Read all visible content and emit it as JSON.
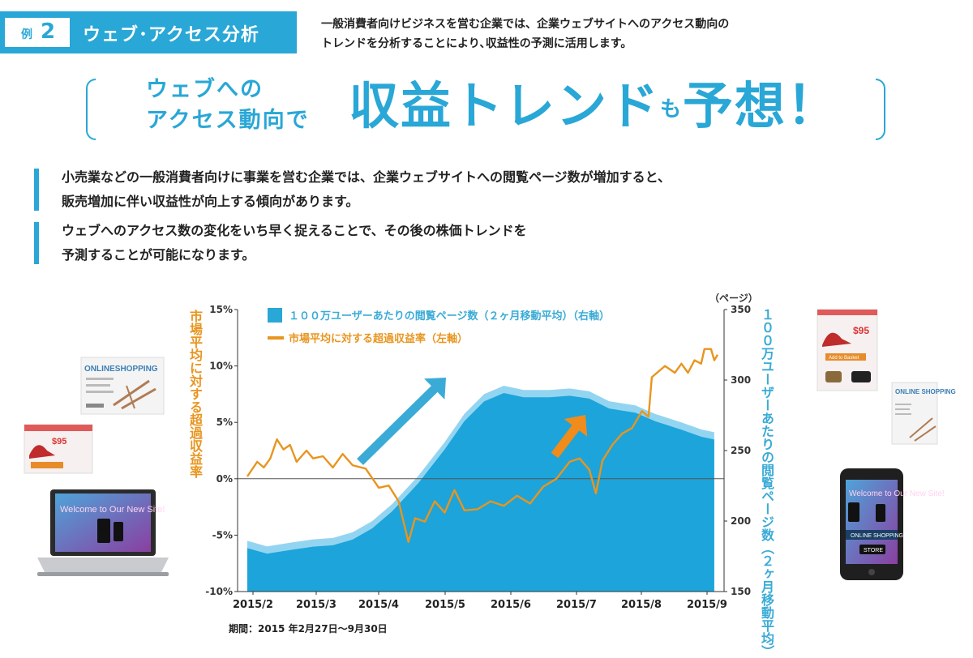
{
  "header": {
    "example_label": "例",
    "example_number": "2",
    "category": "ウェブ･アクセス分析",
    "description_lines": [
      "一般消費者向けビジネスを営む企業では、企業ウェブサイトへのアクセス動向の",
      "トレンドを分析することにより､収益性の予測に活用します。"
    ]
  },
  "headline": {
    "lead_lines": [
      "ウェブへの",
      "アクセス動向で"
    ],
    "main": "収益トレンド",
    "particle": "も",
    "main2": "予想",
    "exclamation": "！"
  },
  "points": [
    {
      "lines": [
        "小売業などの一般消費者向けに事業を営む企業では、企業ウェブサイトへの閲覧ページ数が増加すると、",
        "販売増加に伴い収益性が向上する傾向があります。"
      ]
    },
    {
      "lines": [
        "ウェブへのアクセス数の変化をいち早く捉えることで、その後の株価トレンドを",
        "予測することが可能になります。"
      ]
    }
  ],
  "illustrations": {
    "laptop_screen_text": "Welcome to Our New Site!",
    "phone_screen_text": "Welcome to Our New Site!",
    "phone_banner": "ONLINE SHOPPING",
    "phone_store": "STORE",
    "card_left_title": "ONLINESHOPPING",
    "card_right_title": "ONLINE SHOPPING",
    "price_tag": "$95",
    "add_to_basket": "Add to Basket"
  },
  "chart_data": {
    "type": "area",
    "left_axis_label": "市場平均に対する超過収益率",
    "right_axis_label": "１００万ユーザーあたりの閲覧ページ数（２ヶ月移動平均）",
    "right_axis_unit": "（ページ）",
    "legend": [
      {
        "name": "１００万ユーザーあたりの閲覧ページ数（２ヶ月移動平均）（右軸）",
        "kind": "area"
      },
      {
        "name": "市場平均に対する超過収益率（左軸）",
        "kind": "line"
      }
    ],
    "y_left_ticks": [
      "15%",
      "10%",
      "5%",
      "0%",
      "-5%",
      "-10%"
    ],
    "y_left_range": [
      -10,
      15
    ],
    "y_right_ticks": [
      "350",
      "300",
      "250",
      "200",
      "150"
    ],
    "y_right_range": [
      150,
      350
    ],
    "x_ticks": [
      "2015/2",
      "2015/3",
      "2015/4",
      "2015/5",
      "2015/6",
      "2015/7",
      "2015/8",
      "2015/9"
    ],
    "x_range": [
      0,
      7
    ],
    "period_note": "期間：2015 年2月27日～9月30日",
    "colors": {
      "area_dark": "#1aa3d9",
      "area_light": "#8fd2ef",
      "line": "#e8951f",
      "arrow": "#3aabd6",
      "axis_text": "#e8951f",
      "right_text": "#3aabd6"
    },
    "page_views": [
      {
        "x": 0.0,
        "y": 186
      },
      {
        "x": 0.3,
        "y": 182
      },
      {
        "x": 0.7,
        "y": 185
      },
      {
        "x": 1.0,
        "y": 187
      },
      {
        "x": 1.3,
        "y": 188
      },
      {
        "x": 1.6,
        "y": 192
      },
      {
        "x": 1.9,
        "y": 200
      },
      {
        "x": 2.2,
        "y": 212
      },
      {
        "x": 2.6,
        "y": 232
      },
      {
        "x": 3.0,
        "y": 256
      },
      {
        "x": 3.3,
        "y": 276
      },
      {
        "x": 3.6,
        "y": 290
      },
      {
        "x": 3.9,
        "y": 296
      },
      {
        "x": 4.2,
        "y": 293
      },
      {
        "x": 4.6,
        "y": 293
      },
      {
        "x": 4.9,
        "y": 294
      },
      {
        "x": 5.2,
        "y": 292
      },
      {
        "x": 5.5,
        "y": 285
      },
      {
        "x": 5.9,
        "y": 282
      },
      {
        "x": 6.2,
        "y": 276
      },
      {
        "x": 6.6,
        "y": 270
      },
      {
        "x": 6.9,
        "y": 265
      },
      {
        "x": 7.1,
        "y": 263
      }
    ],
    "excess_return": [
      {
        "x": 0.0,
        "y": 0.2
      },
      {
        "x": 0.15,
        "y": 1.5
      },
      {
        "x": 0.25,
        "y": 1.0
      },
      {
        "x": 0.35,
        "y": 1.8
      },
      {
        "x": 0.45,
        "y": 3.5
      },
      {
        "x": 0.55,
        "y": 2.6
      },
      {
        "x": 0.65,
        "y": 3.0
      },
      {
        "x": 0.75,
        "y": 1.5
      },
      {
        "x": 0.9,
        "y": 2.5
      },
      {
        "x": 1.0,
        "y": 1.8
      },
      {
        "x": 1.15,
        "y": 2.0
      },
      {
        "x": 1.3,
        "y": 1.0
      },
      {
        "x": 1.45,
        "y": 2.2
      },
      {
        "x": 1.6,
        "y": 1.2
      },
      {
        "x": 1.8,
        "y": 0.9
      },
      {
        "x": 2.0,
        "y": -0.8
      },
      {
        "x": 2.15,
        "y": -0.6
      },
      {
        "x": 2.3,
        "y": -2.0
      },
      {
        "x": 2.45,
        "y": -5.6
      },
      {
        "x": 2.55,
        "y": -3.5
      },
      {
        "x": 2.7,
        "y": -3.8
      },
      {
        "x": 2.85,
        "y": -2.0
      },
      {
        "x": 3.0,
        "y": -3.0
      },
      {
        "x": 3.15,
        "y": -1.0
      },
      {
        "x": 3.3,
        "y": -2.8
      },
      {
        "x": 3.5,
        "y": -2.7
      },
      {
        "x": 3.7,
        "y": -2.0
      },
      {
        "x": 3.9,
        "y": -2.4
      },
      {
        "x": 4.1,
        "y": -1.5
      },
      {
        "x": 4.3,
        "y": -2.2
      },
      {
        "x": 4.5,
        "y": -0.7
      },
      {
        "x": 4.7,
        "y": 0.0
      },
      {
        "x": 4.9,
        "y": 1.5
      },
      {
        "x": 5.05,
        "y": 1.8
      },
      {
        "x": 5.2,
        "y": 0.8
      },
      {
        "x": 5.3,
        "y": -1.3
      },
      {
        "x": 5.4,
        "y": 1.6
      },
      {
        "x": 5.55,
        "y": 3.0
      },
      {
        "x": 5.7,
        "y": 4.0
      },
      {
        "x": 5.85,
        "y": 4.5
      },
      {
        "x": 6.0,
        "y": 6.0
      },
      {
        "x": 6.1,
        "y": 5.5
      },
      {
        "x": 6.15,
        "y": 9.0
      },
      {
        "x": 6.25,
        "y": 9.5
      },
      {
        "x": 6.35,
        "y": 10.0
      },
      {
        "x": 6.5,
        "y": 9.4
      },
      {
        "x": 6.6,
        "y": 10.2
      },
      {
        "x": 6.7,
        "y": 9.4
      },
      {
        "x": 6.8,
        "y": 10.5
      },
      {
        "x": 6.9,
        "y": 10.2
      },
      {
        "x": 6.95,
        "y": 11.5
      },
      {
        "x": 7.05,
        "y": 11.5
      },
      {
        "x": 7.1,
        "y": 10.5
      },
      {
        "x": 7.15,
        "y": 11.0
      }
    ]
  }
}
